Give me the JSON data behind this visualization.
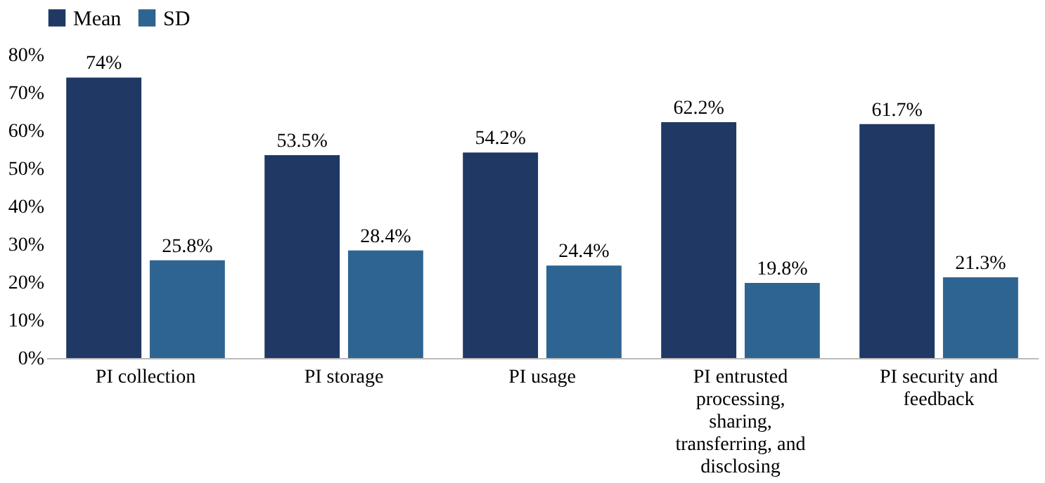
{
  "chart_data": {
    "type": "bar",
    "categories": [
      "PI collection",
      "PI storage",
      "PI usage",
      "PI entrusted processing, sharing, transferring, and disclosing",
      "PI security and feedback"
    ],
    "series": [
      {
        "name": "Mean",
        "color": "#203864",
        "values": [
          74,
          53.5,
          54.2,
          62.2,
          61.7
        ],
        "value_labels": [
          "74%",
          "53.5%",
          "54.2%",
          "62.2%",
          "61.7%"
        ]
      },
      {
        "name": "SD",
        "color": "#2e6491",
        "values": [
          25.8,
          28.4,
          24.4,
          19.8,
          21.3
        ],
        "value_labels": [
          "25.8%",
          "28.4%",
          "24.4%",
          "19.8%",
          "21.3%"
        ]
      }
    ],
    "ylim": [
      0,
      80
    ],
    "yticks": [
      {
        "value": 0,
        "label": "0%"
      },
      {
        "value": 10,
        "label": "10%"
      },
      {
        "value": 20,
        "label": "20%"
      },
      {
        "value": 30,
        "label": "30%"
      },
      {
        "value": 40,
        "label": "40%"
      },
      {
        "value": 50,
        "label": "50%"
      },
      {
        "value": 60,
        "label": "60%"
      },
      {
        "value": 70,
        "label": "70%"
      },
      {
        "value": 80,
        "label": "80%"
      }
    ],
    "grid": false,
    "legend": "top"
  }
}
